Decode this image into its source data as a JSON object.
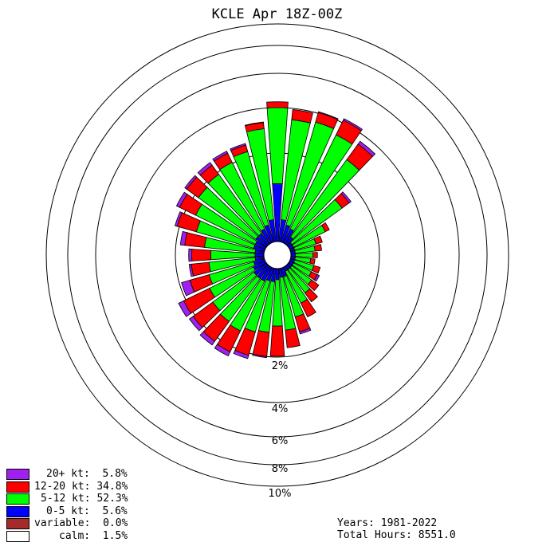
{
  "title": "KCLE Apr 18Z-00Z",
  "ring_labels": [
    "2%",
    "4%",
    "6%",
    "8%",
    "10%"
  ],
  "legend": [
    {
      "label": "20+ kt:  5.8%",
      "color": "#a020f0"
    },
    {
      "label": "12-20 kt: 34.8%",
      "color": "#ff0000"
    },
    {
      "label": "5-12 kt: 52.3%",
      "color": "#00ff00"
    },
    {
      "label": "0-5 kt:  5.6%",
      "color": "#0000ff"
    },
    {
      "label": "variable:  0.0%",
      "color": "#a52a2a"
    },
    {
      "label": "calm:  1.5%",
      "color": "#ffffff"
    }
  ],
  "info": {
    "years": "Years: 1981-2022",
    "total_hours": "Total Hours: 8551.0"
  },
  "chart_data": {
    "type": "windrose",
    "title": "KCLE Apr 18Z-00Z",
    "radial_unit": "%",
    "rings": [
      2,
      4,
      6,
      8,
      10
    ],
    "calm_percent": 1.5,
    "bin_width_deg": 10,
    "speed_bins": [
      "0-5 kt",
      "5-12 kt",
      "12-20 kt",
      "20+ kt"
    ],
    "colors": [
      "#0000ff",
      "#00ff00",
      "#ff0000",
      "#a020f0"
    ],
    "directions": [
      0,
      10,
      20,
      30,
      40,
      50,
      60,
      70,
      80,
      90,
      100,
      110,
      120,
      130,
      140,
      150,
      160,
      170,
      180,
      190,
      200,
      210,
      220,
      230,
      240,
      250,
      260,
      270,
      280,
      290,
      300,
      310,
      320,
      330,
      340,
      350
    ],
    "cumulative": [
      [
        1.31,
        4.0,
        4.34,
        4.34
      ],
      [
        0.5,
        3.5,
        3.95,
        3.95
      ],
      [
        0.4,
        3.6,
        4.05,
        4.1
      ],
      [
        0.35,
        3.4,
        4.15,
        4.25
      ],
      [
        0.2,
        2.7,
        3.55,
        3.7
      ],
      [
        0.1,
        1.5,
        1.7,
        1.75
      ],
      [
        0.1,
        0.9,
        1.0,
        1.0
      ],
      [
        0.1,
        0.6,
        0.75,
        0.75
      ],
      [
        0.1,
        0.55,
        0.7,
        0.7
      ],
      [
        0.1,
        0.5,
        0.6,
        0.6
      ],
      [
        0.1,
        0.45,
        0.55,
        0.55
      ],
      [
        0.1,
        0.55,
        0.7,
        0.7
      ],
      [
        0.1,
        0.55,
        0.7,
        0.75
      ],
      [
        0.1,
        0.65,
        0.85,
        0.85
      ],
      [
        0.1,
        0.75,
        1.0,
        1.0
      ],
      [
        0.1,
        0.9,
        1.25,
        1.25
      ],
      [
        0.2,
        1.15,
        1.5,
        1.55
      ],
      [
        0.2,
        1.4,
        1.8,
        1.8
      ],
      [
        0.25,
        1.3,
        1.98,
        1.98
      ],
      [
        0.3,
        1.45,
        2.0,
        2.05
      ],
      [
        0.3,
        1.5,
        2.1,
        2.25
      ],
      [
        0.35,
        1.6,
        2.25,
        2.45
      ],
      [
        0.35,
        1.55,
        2.2,
        2.4
      ],
      [
        0.35,
        1.5,
        2.1,
        2.3
      ],
      [
        0.3,
        1.4,
        2.1,
        2.35
      ],
      [
        0.25,
        1.3,
        1.75,
        1.95
      ],
      [
        0.2,
        1.25,
        1.65,
        1.7
      ],
      [
        0.2,
        1.2,
        1.63,
        1.7
      ],
      [
        0.2,
        1.35,
        1.8,
        1.9
      ],
      [
        0.25,
        1.6,
        2.1,
        2.2
      ],
      [
        0.25,
        1.75,
        2.3,
        2.45
      ],
      [
        0.3,
        1.9,
        2.45,
        2.55
      ],
      [
        0.3,
        1.95,
        2.4,
        2.55
      ],
      [
        0.35,
        2.05,
        2.5,
        2.6
      ],
      [
        0.4,
        2.25,
        2.55,
        2.62
      ],
      [
        0.5,
        3.1,
        3.38,
        3.4
      ]
    ]
  }
}
